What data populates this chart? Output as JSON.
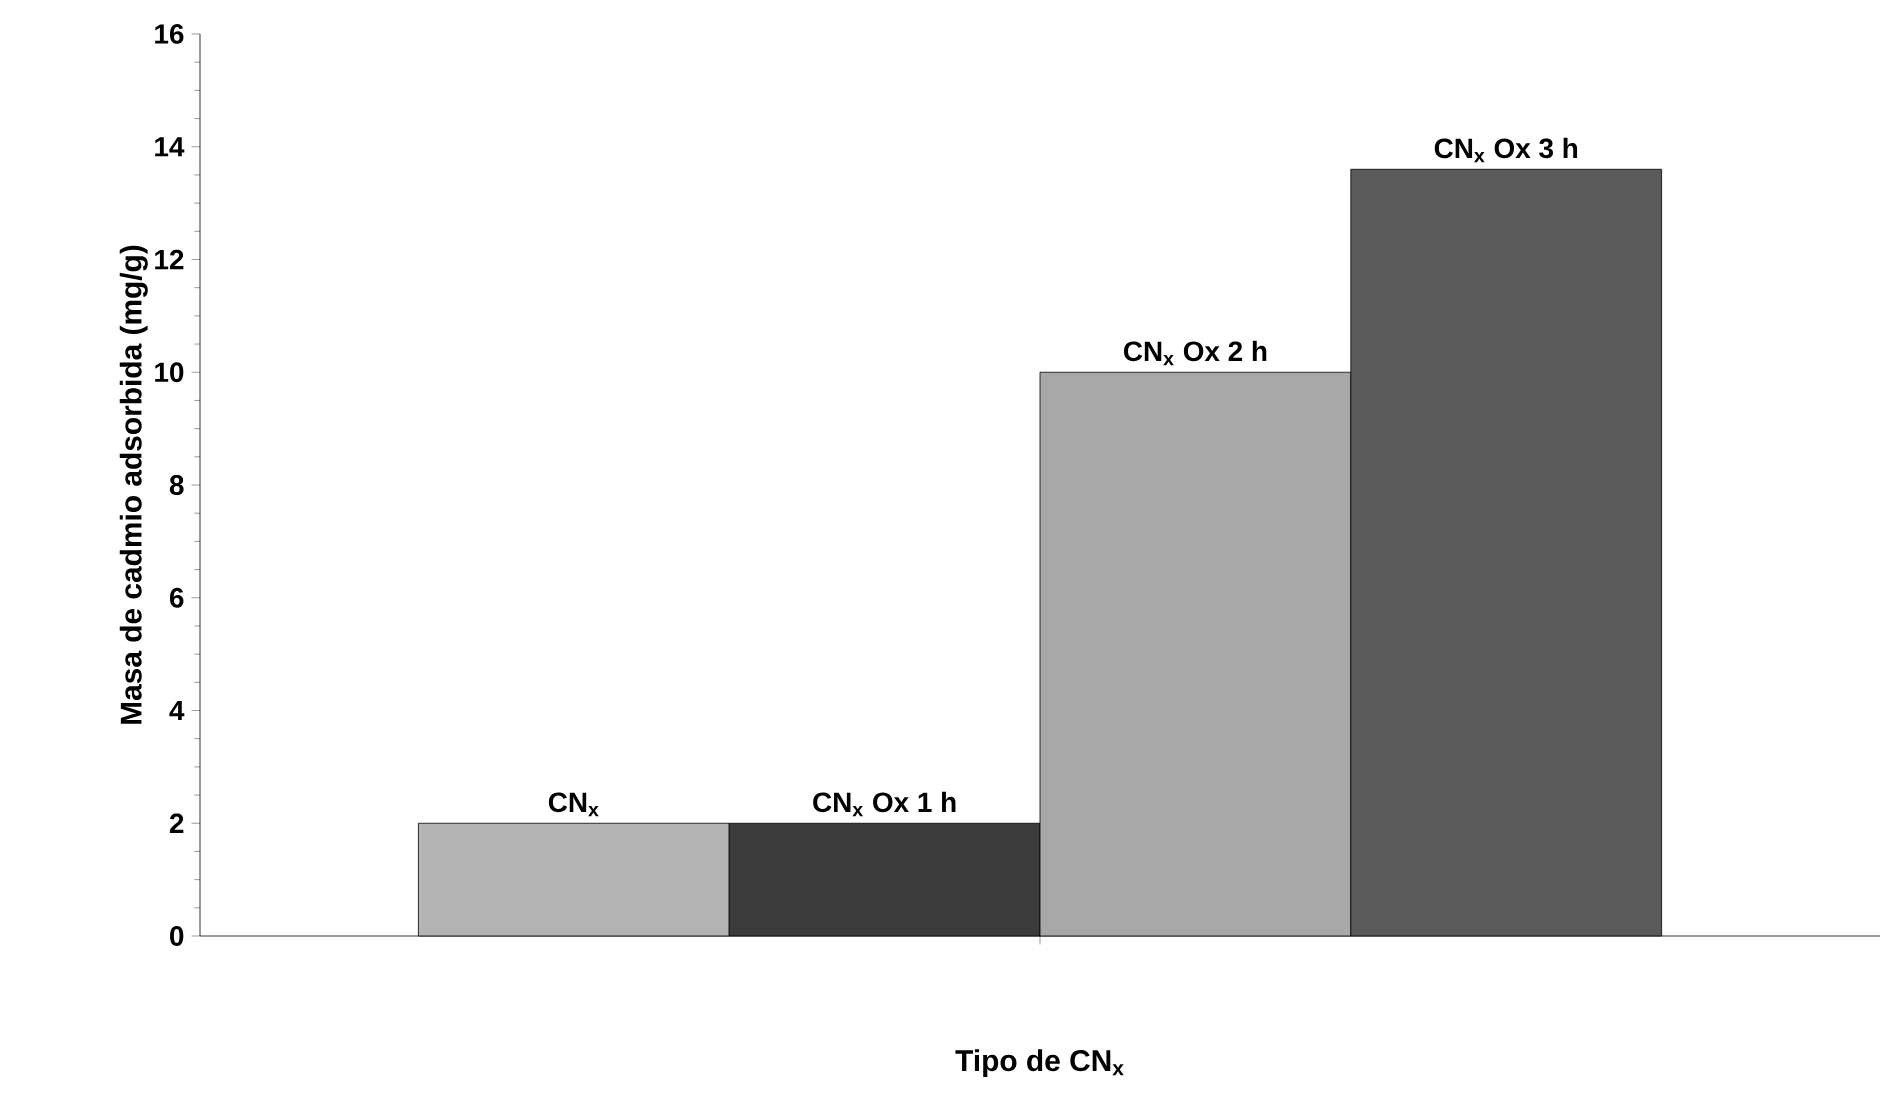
{
  "chart_data": {
    "type": "bar",
    "xlabel": "Tipo de CN$_{x}$",
    "ylabel": "Masa de cadmio adsorbida (mg/g)",
    "categories": [
      null
    ],
    "series": [
      {
        "name": "CN$_{x}$",
        "color": "#b4b4b4",
        "values": [
          2.0
        ]
      },
      {
        "name": "CN$_{x}$ Ox 1 h",
        "color": "#3c3c3c",
        "values": [
          2.0
        ]
      },
      {
        "name": "CN$_{x}$ Ox 2 h",
        "color": "#a8a8a8",
        "values": [
          10.0
        ]
      },
      {
        "name": "CN$_{x}$ Ox 3 h",
        "color": "#5a5a5a",
        "values": [
          13.6
        ]
      }
    ],
    "ylim": [
      0,
      16
    ],
    "yticks": [
      0,
      2,
      4,
      6,
      8,
      10,
      12,
      14,
      16
    ]
  }
}
